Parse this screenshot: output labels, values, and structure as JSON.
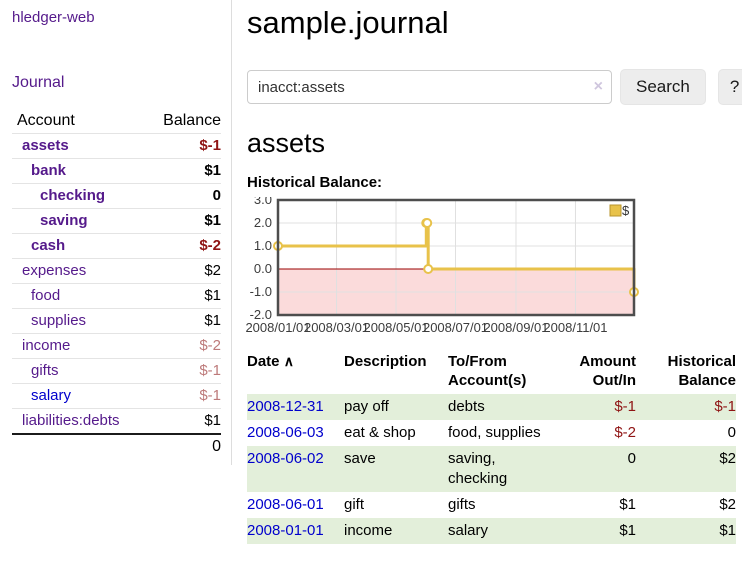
{
  "sidebar": {
    "app_title": "hledger-web",
    "nav": {
      "journal": "Journal"
    },
    "table": {
      "col_account": "Account",
      "col_balance": "Balance"
    },
    "accounts": [
      {
        "name": "assets",
        "balance": "$-1"
      },
      {
        "name": "bank",
        "balance": "$1"
      },
      {
        "name": "checking",
        "balance": "0"
      },
      {
        "name": "saving",
        "balance": "$1"
      },
      {
        "name": "cash",
        "balance": "$-2"
      },
      {
        "name": "expenses",
        "balance": "$2"
      },
      {
        "name": "food",
        "balance": "$1"
      },
      {
        "name": "supplies",
        "balance": "$1"
      },
      {
        "name": "income",
        "balance": "$-2"
      },
      {
        "name": "gifts",
        "balance": "$-1"
      },
      {
        "name": "salary",
        "balance": "$-1"
      },
      {
        "name": "liabilities:debts",
        "balance": "$1"
      }
    ],
    "total": "0"
  },
  "main": {
    "title": "sample.journal",
    "search": {
      "value": "inacct:assets",
      "clear_icon": "×",
      "button_label": "Search",
      "help_label": "?"
    },
    "account_heading": "assets",
    "chart_title": "Historical Balance:"
  },
  "chart_data": {
    "type": "line",
    "title": "Historical Balance",
    "step": true,
    "grid": true,
    "legend_position": "top-right",
    "x_range": [
      "2008-01-01",
      "2008-12-31"
    ],
    "ylim": [
      -2,
      3
    ],
    "y_ticks": [
      3,
      2,
      1,
      0,
      -1,
      -2
    ],
    "x_ticks": [
      "2008/01/01",
      "2008/03/01",
      "2008/05/01",
      "2008/07/01",
      "2008/09/01",
      "2008/11/01"
    ],
    "series": [
      {
        "name": "$",
        "color": "#E8C24A",
        "points": [
          [
            "2008-01-01",
            1
          ],
          [
            "2008-06-01",
            2
          ],
          [
            "2008-06-02",
            2
          ],
          [
            "2008-06-03",
            0
          ],
          [
            "2008-12-31",
            -1
          ]
        ]
      }
    ],
    "negative_fill": "#FBDBDB",
    "zero_line_color": "#9A0000"
  },
  "register": {
    "headers": {
      "date": "Date",
      "sort_caret": "∧",
      "description": "Description",
      "account": "To/From Account(s)",
      "amount": "Amount Out/In",
      "balance": "Historical Balance"
    },
    "rows": [
      {
        "date": "2008-12-31",
        "description": "pay off",
        "account": "debts",
        "amount": "$-1",
        "balance": "$-1"
      },
      {
        "date": "2008-06-03",
        "description": "eat & shop",
        "account": "food, supplies",
        "amount": "$-2",
        "balance": "0"
      },
      {
        "date": "2008-06-02",
        "description": "save",
        "account": "saving, checking",
        "amount": "0",
        "balance": "$2"
      },
      {
        "date": "2008-06-01",
        "description": "gift",
        "account": "gifts",
        "amount": "$1",
        "balance": "$2"
      },
      {
        "date": "2008-01-01",
        "description": "income",
        "account": "salary",
        "amount": "$1",
        "balance": "$1"
      }
    ]
  }
}
